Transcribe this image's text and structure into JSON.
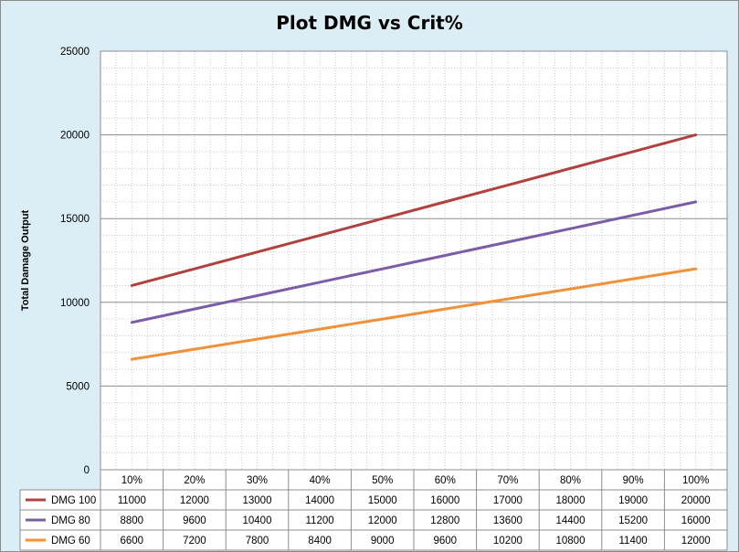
{
  "chart_data": {
    "type": "line",
    "title": "Plot DMG vs Crit%",
    "xlabel": "",
    "ylabel": "Total Damage  Output",
    "categories": [
      "10%",
      "20%",
      "30%",
      "40%",
      "50%",
      "60%",
      "70%",
      "80%",
      "90%",
      "100%"
    ],
    "ylim": [
      0,
      25000
    ],
    "yticks": [
      0,
      5000,
      10000,
      15000,
      20000,
      25000
    ],
    "grid": true,
    "legend": "data-table-bottom",
    "series": [
      {
        "name": "DMG 100",
        "color": "#b0413e",
        "values": [
          11000,
          12000,
          13000,
          14000,
          15000,
          16000,
          17000,
          18000,
          19000,
          20000
        ]
      },
      {
        "name": "DMG 80",
        "color": "#7b5ca8",
        "values": [
          8800,
          9600,
          10400,
          11200,
          12000,
          12800,
          13600,
          14400,
          15200,
          16000
        ]
      },
      {
        "name": "DMG 60",
        "color": "#f0913a",
        "values": [
          6600,
          7200,
          7800,
          8400,
          9000,
          9600,
          10200,
          10800,
          11400,
          12000
        ]
      }
    ]
  }
}
